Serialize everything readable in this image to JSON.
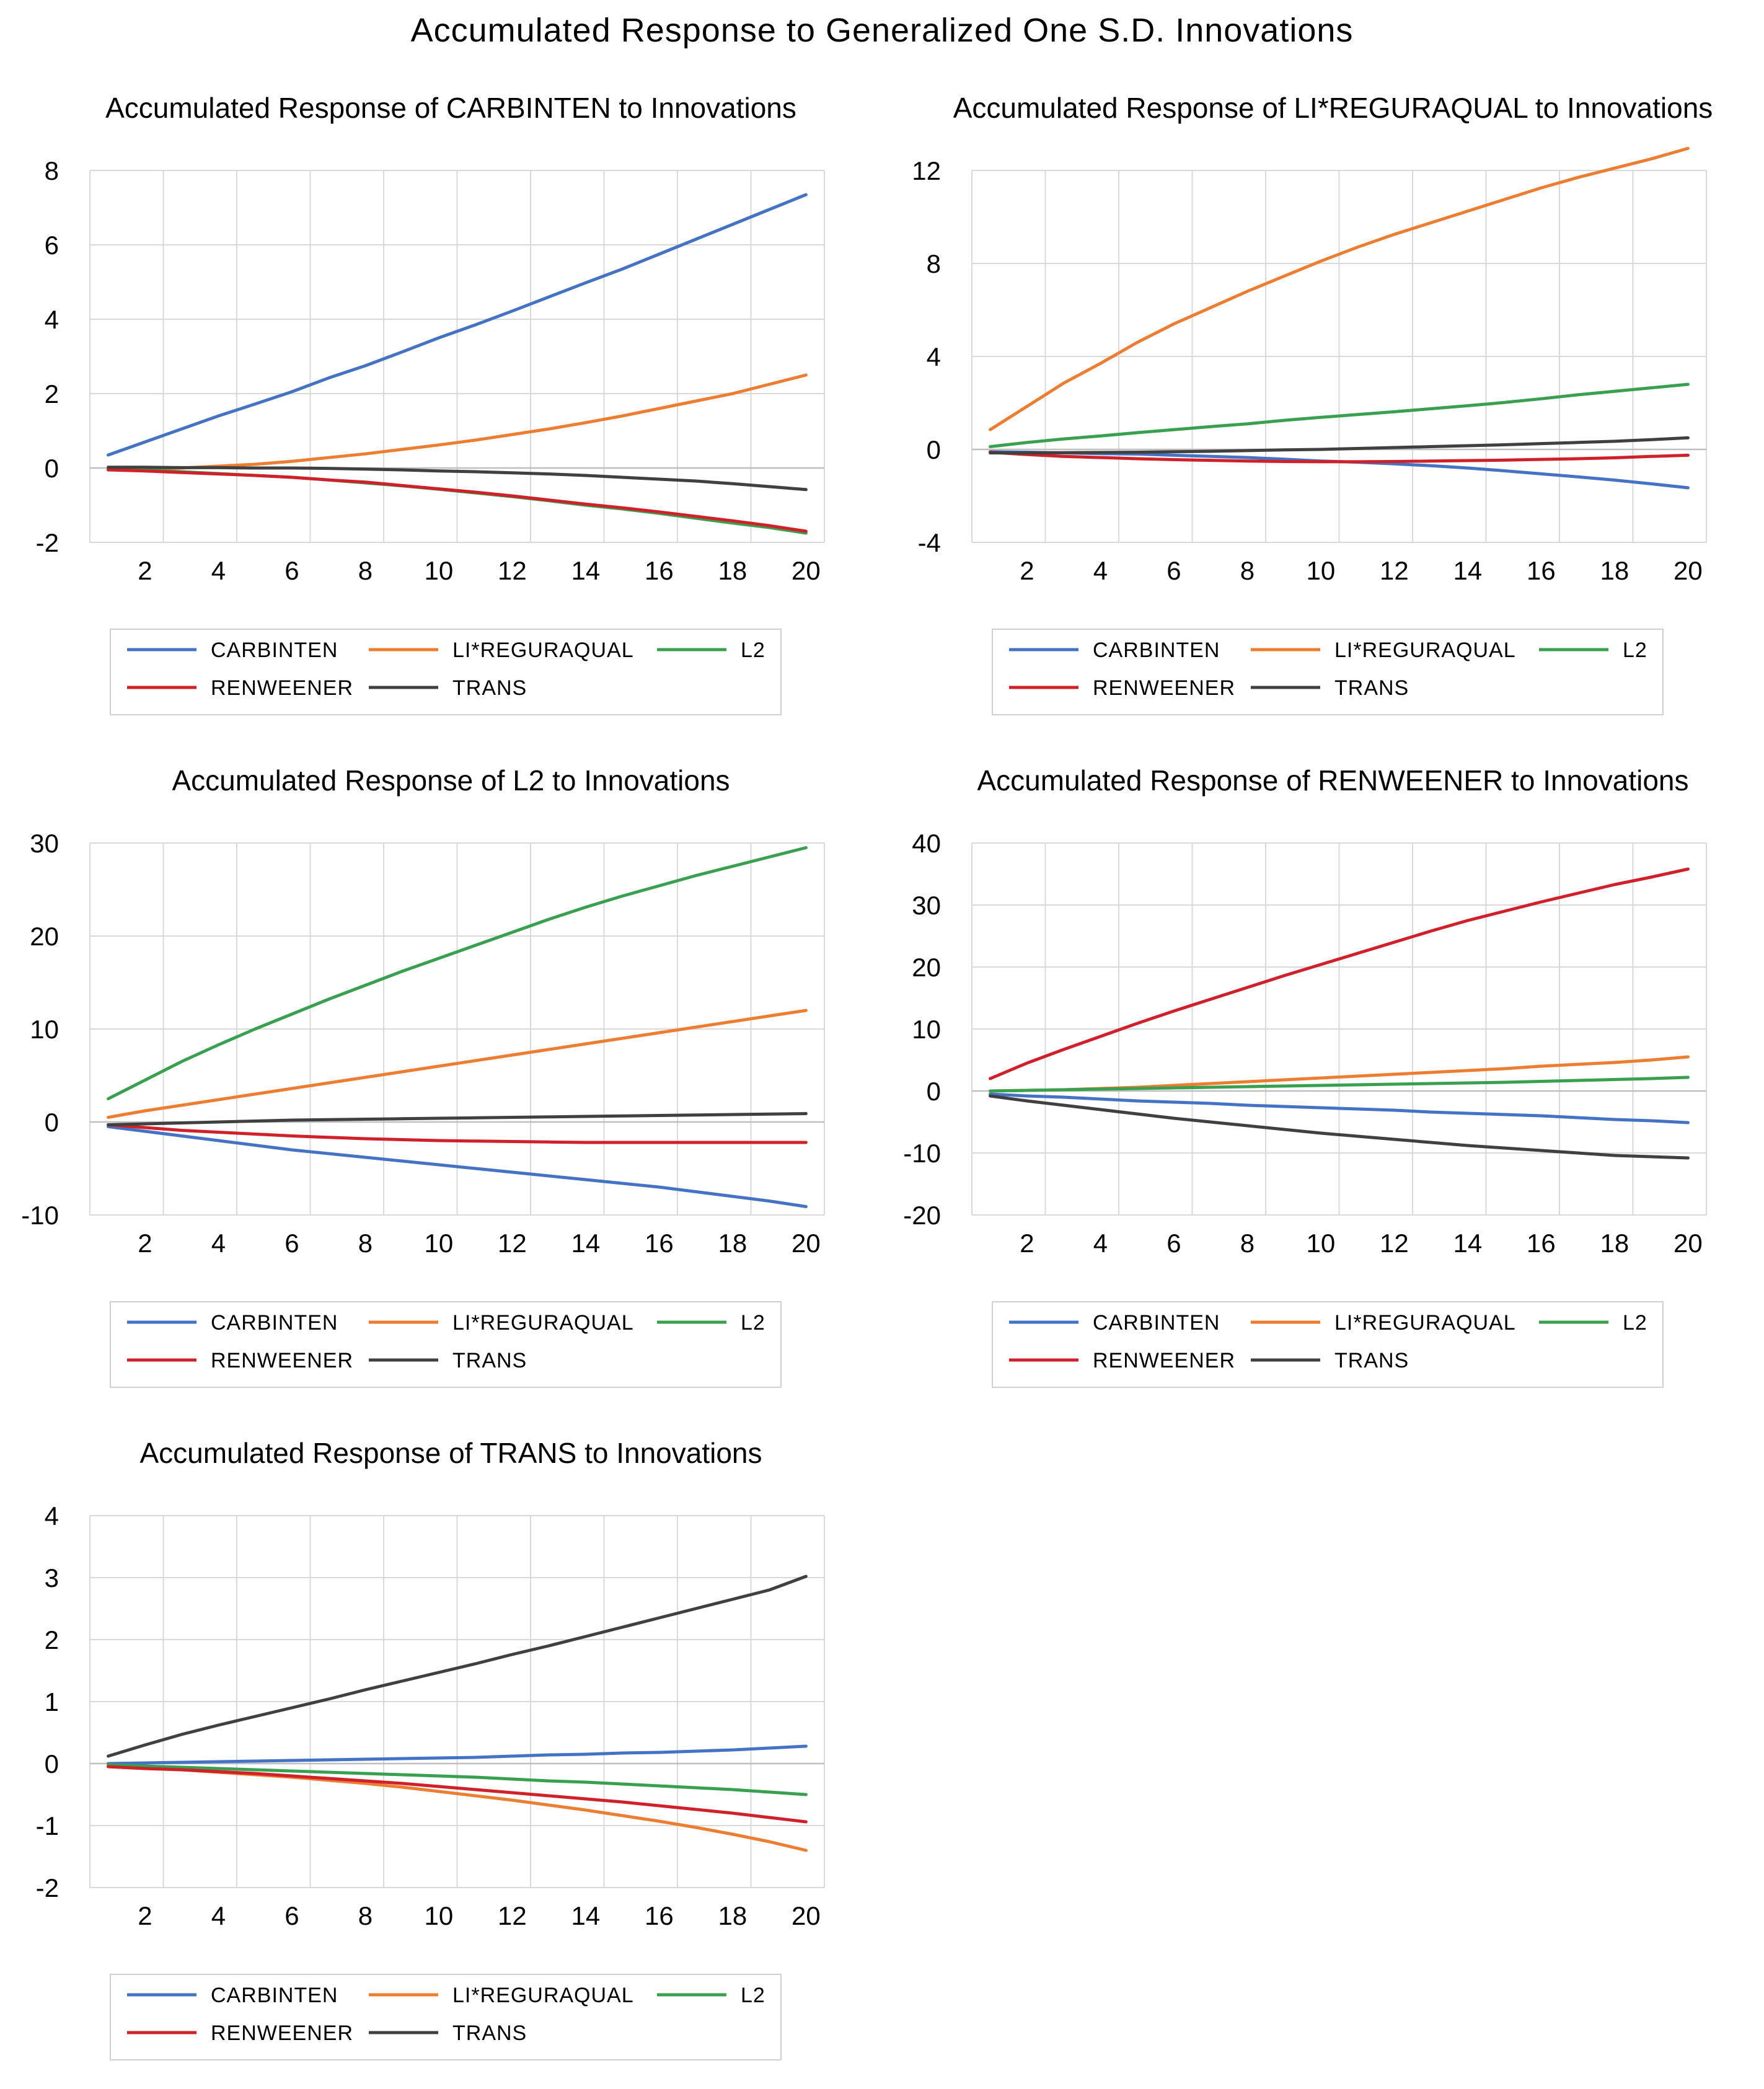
{
  "main_title": "Accumulated Response to Generalized One S.D. Innovations",
  "colors": {
    "CARBINTEN": "#4472c4",
    "LI*REGURAQUAL": "#ed7d31",
    "L2": "#38a04e",
    "RENWEENER": "#d0202a",
    "TRANS": "#404040"
  },
  "legend": [
    "CARBINTEN",
    "LI*REGURAQUAL",
    "L2",
    "RENWEENER",
    "TRANS"
  ],
  "chart_data": [
    {
      "type": "line",
      "title": "Accumulated Response of CARBINTEN to Innovations",
      "xlabel": "",
      "ylabel": "",
      "x": [
        1,
        2,
        3,
        4,
        5,
        6,
        7,
        8,
        9,
        10,
        11,
        12,
        13,
        14,
        15,
        16,
        17,
        18,
        19,
        20
      ],
      "xticks": [
        2,
        4,
        6,
        8,
        10,
        12,
        14,
        16,
        18,
        20
      ],
      "ylim": [
        -2,
        8
      ],
      "yticks": [
        -2,
        0,
        2,
        4,
        6,
        8
      ],
      "legend_position": "bottom",
      "series": [
        {
          "name": "CARBINTEN",
          "values": [
            0.35,
            0.7,
            1.05,
            1.4,
            1.72,
            2.05,
            2.42,
            2.75,
            3.12,
            3.5,
            3.85,
            4.22,
            4.6,
            4.98,
            5.35,
            5.75,
            6.15,
            6.55,
            6.95,
            7.35
          ]
        },
        {
          "name": "LI*REGURAQUAL",
          "values": [
            -0.05,
            -0.02,
            0.0,
            0.05,
            0.1,
            0.18,
            0.28,
            0.38,
            0.5,
            0.62,
            0.75,
            0.9,
            1.05,
            1.22,
            1.4,
            1.6,
            1.8,
            2.0,
            2.25,
            2.5
          ]
        },
        {
          "name": "L2",
          "values": [
            -0.02,
            -0.05,
            -0.1,
            -0.15,
            -0.2,
            -0.25,
            -0.32,
            -0.4,
            -0.48,
            -0.57,
            -0.67,
            -0.77,
            -0.88,
            -1.0,
            -1.1,
            -1.22,
            -1.35,
            -1.48,
            -1.6,
            -1.75
          ]
        },
        {
          "name": "RENWEENER",
          "values": [
            -0.05,
            -0.08,
            -0.12,
            -0.16,
            -0.2,
            -0.25,
            -0.32,
            -0.38,
            -0.47,
            -0.56,
            -0.65,
            -0.75,
            -0.86,
            -0.97,
            -1.07,
            -1.18,
            -1.3,
            -1.42,
            -1.55,
            -1.7
          ]
        },
        {
          "name": "TRANS",
          "values": [
            0.02,
            0.02,
            0.01,
            0.01,
            0.0,
            0.0,
            -0.01,
            -0.03,
            -0.05,
            -0.08,
            -0.1,
            -0.13,
            -0.16,
            -0.2,
            -0.25,
            -0.3,
            -0.35,
            -0.42,
            -0.5,
            -0.58
          ]
        }
      ]
    },
    {
      "type": "line",
      "title": "Accumulated Response of LI*REGURAQUAL to Innovations",
      "xlabel": "",
      "ylabel": "",
      "x": [
        1,
        2,
        3,
        4,
        5,
        6,
        7,
        8,
        9,
        10,
        11,
        12,
        13,
        14,
        15,
        16,
        17,
        18,
        19,
        20
      ],
      "xticks": [
        2,
        4,
        6,
        8,
        10,
        12,
        14,
        16,
        18,
        20
      ],
      "ylim": [
        -4,
        12
      ],
      "yticks": [
        -4,
        0,
        4,
        8,
        12
      ],
      "legend_position": "bottom",
      "series": [
        {
          "name": "CARBINTEN",
          "values": [
            -0.1,
            -0.12,
            -0.15,
            -0.18,
            -0.2,
            -0.25,
            -0.3,
            -0.35,
            -0.42,
            -0.5,
            -0.55,
            -0.62,
            -0.7,
            -0.8,
            -0.92,
            -1.05,
            -1.18,
            -1.32,
            -1.48,
            -1.65
          ]
        },
        {
          "name": "LI*REGURAQUAL",
          "values": [
            0.85,
            1.85,
            2.85,
            3.7,
            4.6,
            5.4,
            6.1,
            6.8,
            7.45,
            8.1,
            8.7,
            9.25,
            9.75,
            10.25,
            10.75,
            11.25,
            11.7,
            12.1,
            12.5,
            12.95
          ]
        },
        {
          "name": "L2",
          "values": [
            0.12,
            0.3,
            0.45,
            0.58,
            0.72,
            0.85,
            0.98,
            1.1,
            1.25,
            1.38,
            1.5,
            1.62,
            1.75,
            1.88,
            2.02,
            2.18,
            2.35,
            2.5,
            2.65,
            2.8
          ]
        },
        {
          "name": "RENWEENER",
          "values": [
            -0.12,
            -0.22,
            -0.3,
            -0.35,
            -0.4,
            -0.44,
            -0.47,
            -0.5,
            -0.52,
            -0.53,
            -0.53,
            -0.52,
            -0.5,
            -0.48,
            -0.46,
            -0.43,
            -0.4,
            -0.36,
            -0.3,
            -0.25
          ]
        },
        {
          "name": "TRANS",
          "values": [
            -0.15,
            -0.15,
            -0.14,
            -0.13,
            -0.12,
            -0.1,
            -0.08,
            -0.05,
            -0.02,
            0.0,
            0.04,
            0.08,
            0.12,
            0.16,
            0.2,
            0.25,
            0.3,
            0.35,
            0.42,
            0.5
          ]
        }
      ]
    },
    {
      "type": "line",
      "title": "Accumulated Response of L2 to Innovations",
      "xlabel": "",
      "ylabel": "",
      "x": [
        1,
        2,
        3,
        4,
        5,
        6,
        7,
        8,
        9,
        10,
        11,
        12,
        13,
        14,
        15,
        16,
        17,
        18,
        19,
        20
      ],
      "xticks": [
        2,
        4,
        6,
        8,
        10,
        12,
        14,
        16,
        18,
        20
      ],
      "ylim": [
        -10,
        30
      ],
      "yticks": [
        -10,
        0,
        10,
        20,
        30
      ],
      "legend_position": "bottom",
      "series": [
        {
          "name": "CARBINTEN",
          "values": [
            -0.5,
            -1.0,
            -1.5,
            -2.0,
            -2.5,
            -3.0,
            -3.4,
            -3.8,
            -4.2,
            -4.6,
            -5.0,
            -5.4,
            -5.8,
            -6.2,
            -6.6,
            -7.0,
            -7.5,
            -8.0,
            -8.5,
            -9.1
          ]
        },
        {
          "name": "LI*REGURAQUAL",
          "values": [
            0.5,
            1.2,
            1.8,
            2.4,
            3.0,
            3.6,
            4.2,
            4.8,
            5.4,
            6.0,
            6.6,
            7.2,
            7.8,
            8.4,
            9.0,
            9.6,
            10.2,
            10.8,
            11.4,
            12.0
          ]
        },
        {
          "name": "L2",
          "values": [
            2.5,
            4.5,
            6.5,
            8.3,
            10.0,
            11.6,
            13.2,
            14.7,
            16.2,
            17.6,
            19.0,
            20.4,
            21.8,
            23.1,
            24.3,
            25.4,
            26.5,
            27.5,
            28.5,
            29.5
          ]
        },
        {
          "name": "RENWEENER",
          "values": [
            -0.3,
            -0.6,
            -0.9,
            -1.1,
            -1.3,
            -1.5,
            -1.65,
            -1.8,
            -1.9,
            -2.0,
            -2.05,
            -2.1,
            -2.15,
            -2.2,
            -2.2,
            -2.2,
            -2.2,
            -2.2,
            -2.2,
            -2.2
          ]
        },
        {
          "name": "TRANS",
          "values": [
            -0.3,
            -0.2,
            -0.1,
            0.0,
            0.1,
            0.2,
            0.25,
            0.3,
            0.35,
            0.4,
            0.45,
            0.5,
            0.55,
            0.6,
            0.65,
            0.7,
            0.75,
            0.8,
            0.85,
            0.9
          ]
        }
      ]
    },
    {
      "type": "line",
      "title": "Accumulated Response of RENWEENER to Innovations",
      "xlabel": "",
      "ylabel": "",
      "x": [
        1,
        2,
        3,
        4,
        5,
        6,
        7,
        8,
        9,
        10,
        11,
        12,
        13,
        14,
        15,
        16,
        17,
        18,
        19,
        20
      ],
      "xticks": [
        2,
        4,
        6,
        8,
        10,
        12,
        14,
        16,
        18,
        20
      ],
      "ylim": [
        -20,
        40
      ],
      "yticks": [
        -20,
        -10,
        0,
        10,
        20,
        30,
        40
      ],
      "legend_position": "bottom",
      "series": [
        {
          "name": "CARBINTEN",
          "values": [
            -0.5,
            -0.8,
            -1.0,
            -1.3,
            -1.6,
            -1.8,
            -2.0,
            -2.3,
            -2.5,
            -2.7,
            -2.9,
            -3.1,
            -3.4,
            -3.6,
            -3.8,
            -4.0,
            -4.3,
            -4.6,
            -4.8,
            -5.1
          ]
        },
        {
          "name": "LI*REGURAQUAL",
          "values": [
            0.0,
            0.1,
            0.2,
            0.4,
            0.6,
            0.9,
            1.2,
            1.5,
            1.8,
            2.1,
            2.4,
            2.7,
            3.0,
            3.3,
            3.6,
            4.0,
            4.3,
            4.6,
            5.0,
            5.5
          ]
        },
        {
          "name": "L2",
          "values": [
            0.0,
            0.1,
            0.2,
            0.3,
            0.4,
            0.5,
            0.6,
            0.7,
            0.8,
            0.9,
            1.0,
            1.1,
            1.2,
            1.3,
            1.4,
            1.55,
            1.7,
            1.85,
            2.0,
            2.2
          ]
        },
        {
          "name": "RENWEENER",
          "values": [
            2.0,
            4.5,
            6.7,
            8.8,
            10.9,
            12.9,
            14.8,
            16.7,
            18.6,
            20.4,
            22.2,
            24.0,
            25.8,
            27.5,
            29.0,
            30.5,
            31.9,
            33.3,
            34.5,
            35.8
          ]
        },
        {
          "name": "TRANS",
          "values": [
            -0.8,
            -1.6,
            -2.3,
            -3.0,
            -3.7,
            -4.4,
            -5.0,
            -5.6,
            -6.2,
            -6.8,
            -7.3,
            -7.8,
            -8.3,
            -8.8,
            -9.2,
            -9.6,
            -10.0,
            -10.4,
            -10.6,
            -10.8
          ]
        }
      ]
    },
    {
      "type": "line",
      "title": "Accumulated Response of TRANS to Innovations",
      "xlabel": "",
      "ylabel": "",
      "x": [
        1,
        2,
        3,
        4,
        5,
        6,
        7,
        8,
        9,
        10,
        11,
        12,
        13,
        14,
        15,
        16,
        17,
        18,
        19,
        20
      ],
      "xticks": [
        2,
        4,
        6,
        8,
        10,
        12,
        14,
        16,
        18,
        20
      ],
      "ylim": [
        -2,
        4
      ],
      "yticks": [
        -2,
        -1,
        0,
        1,
        2,
        3,
        4
      ],
      "legend_position": "bottom",
      "series": [
        {
          "name": "CARBINTEN",
          "values": [
            0.0,
            0.01,
            0.02,
            0.03,
            0.04,
            0.05,
            0.06,
            0.07,
            0.08,
            0.09,
            0.1,
            0.12,
            0.14,
            0.15,
            0.17,
            0.18,
            0.2,
            0.22,
            0.25,
            0.28
          ]
        },
        {
          "name": "LI*REGURAQUAL",
          "values": [
            -0.05,
            -0.08,
            -0.1,
            -0.14,
            -0.18,
            -0.22,
            -0.27,
            -0.32,
            -0.38,
            -0.45,
            -0.52,
            -0.59,
            -0.67,
            -0.75,
            -0.84,
            -0.93,
            -1.03,
            -1.14,
            -1.26,
            -1.4
          ]
        },
        {
          "name": "L2",
          "values": [
            -0.02,
            -0.04,
            -0.06,
            -0.08,
            -0.1,
            -0.12,
            -0.14,
            -0.16,
            -0.18,
            -0.2,
            -0.22,
            -0.25,
            -0.28,
            -0.3,
            -0.33,
            -0.36,
            -0.39,
            -0.42,
            -0.46,
            -0.5
          ]
        },
        {
          "name": "RENWEENER",
          "values": [
            -0.05,
            -0.08,
            -0.1,
            -0.13,
            -0.16,
            -0.2,
            -0.24,
            -0.28,
            -0.32,
            -0.37,
            -0.42,
            -0.47,
            -0.52,
            -0.57,
            -0.62,
            -0.68,
            -0.74,
            -0.8,
            -0.87,
            -0.94
          ]
        },
        {
          "name": "TRANS",
          "values": [
            0.12,
            0.3,
            0.47,
            0.62,
            0.76,
            0.9,
            1.04,
            1.19,
            1.33,
            1.47,
            1.61,
            1.76,
            1.9,
            2.05,
            2.2,
            2.35,
            2.5,
            2.65,
            2.8,
            3.02
          ]
        }
      ]
    }
  ]
}
